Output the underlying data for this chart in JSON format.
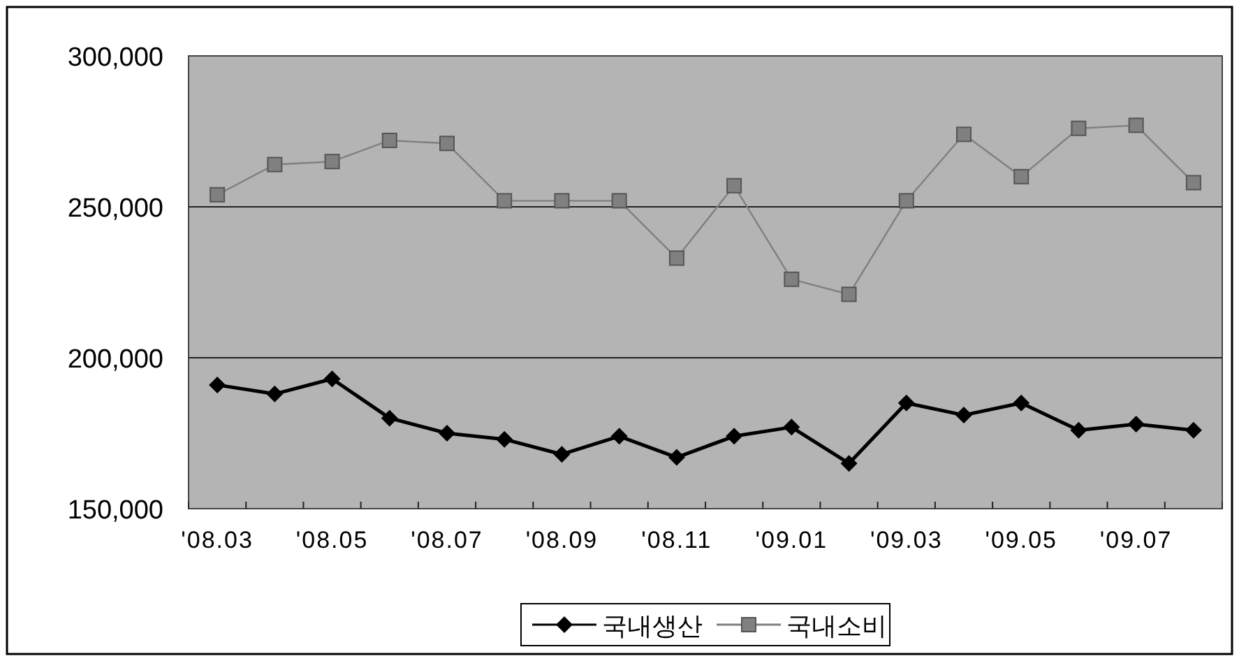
{
  "chart_data": {
    "type": "line",
    "categories": [
      "'08.03",
      null,
      "'08.05",
      null,
      "'08.07",
      null,
      "'08.09",
      null,
      "'08.11",
      null,
      "'09.01",
      null,
      "'09.03",
      null,
      "'09.05",
      null,
      "'09.07",
      null
    ],
    "series": [
      {
        "name": "국내생산",
        "color": "#000000",
        "marker": "diamond",
        "values": [
          191000,
          188000,
          193000,
          180000,
          175000,
          173000,
          168000,
          174000,
          167000,
          174000,
          177000,
          165000,
          185000,
          181000,
          185000,
          176000,
          178000,
          176000
        ]
      },
      {
        "name": "국내소비",
        "color": "#808080",
        "marker": "square",
        "values": [
          254000,
          264000,
          265000,
          272000,
          271000,
          252000,
          252000,
          252000,
          233000,
          257000,
          226000,
          221000,
          252000,
          274000,
          260000,
          276000,
          277000,
          258000
        ]
      }
    ],
    "ylim": [
      150000,
      300000
    ],
    "yticks": [
      {
        "value": 150000,
        "label": "150,000"
      },
      {
        "value": 200000,
        "label": "200,000"
      },
      {
        "value": 250000,
        "label": "250,000"
      },
      {
        "value": 300000,
        "label": "300,000"
      }
    ],
    "grid": "y",
    "legend": "bottom",
    "line_style": "solid"
  }
}
